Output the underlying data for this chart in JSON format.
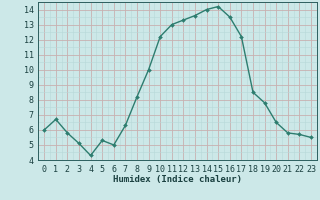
{
  "x": [
    0,
    1,
    2,
    3,
    4,
    5,
    6,
    7,
    8,
    9,
    10,
    11,
    12,
    13,
    14,
    15,
    16,
    17,
    18,
    19,
    20,
    21,
    22,
    23
  ],
  "y": [
    6.0,
    6.7,
    5.8,
    5.1,
    4.3,
    5.3,
    5.0,
    6.3,
    8.2,
    10.0,
    12.2,
    13.0,
    13.3,
    13.6,
    14.0,
    14.2,
    13.5,
    12.2,
    8.5,
    7.8,
    6.5,
    5.8,
    5.7,
    5.5
  ],
  "line_color": "#2d7d6f",
  "marker": "D",
  "markersize": 2.0,
  "linewidth": 1.0,
  "xlabel": "Humidex (Indice chaleur)",
  "ylim": [
    4,
    14.5
  ],
  "xlim": [
    -0.5,
    23.5
  ],
  "yticks": [
    4,
    5,
    6,
    7,
    8,
    9,
    10,
    11,
    12,
    13,
    14
  ],
  "xticks": [
    0,
    1,
    2,
    3,
    4,
    5,
    6,
    7,
    8,
    9,
    10,
    11,
    12,
    13,
    14,
    15,
    16,
    17,
    18,
    19,
    20,
    21,
    22,
    23
  ],
  "bg_color": "#cce8e8",
  "grid_minor_color": "#b8d8d8",
  "grid_major_color": "#c8b0b0",
  "line_teal": "#2d6e63",
  "tick_color": "#2d5f5f",
  "label_color": "#1a4040",
  "xlabel_fontsize": 6.5,
  "tick_fontsize": 6.0
}
